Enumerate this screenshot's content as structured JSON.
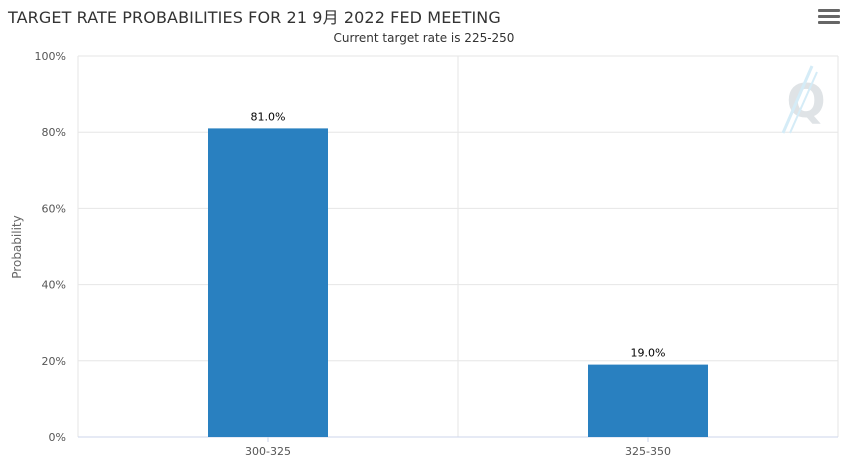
{
  "header": {
    "title": "TARGET RATE PROBABILITIES FOR 21 9月 2022 FED MEETING",
    "subtitle": "Current target rate is 225-250",
    "menu_icon": "hamburger-menu-icon"
  },
  "chart_data": {
    "type": "bar",
    "title": "TARGET RATE PROBABILITIES FOR 21 9月 2022 FED MEETING",
    "subtitle": "Current target rate is 225-250",
    "categories": [
      "300-325",
      "325-350"
    ],
    "values": [
      81.0,
      19.0
    ],
    "data_labels": [
      "81.0%",
      "19.0%"
    ],
    "xlabel": "",
    "ylabel": "Probability",
    "ylim": [
      0,
      100
    ],
    "yticks": [
      "0%",
      "20%",
      "40%",
      "60%",
      "80%",
      "100%"
    ],
    "grid": true,
    "bar_color": "#2980c0",
    "watermark_icon": "q-logo-icon"
  }
}
